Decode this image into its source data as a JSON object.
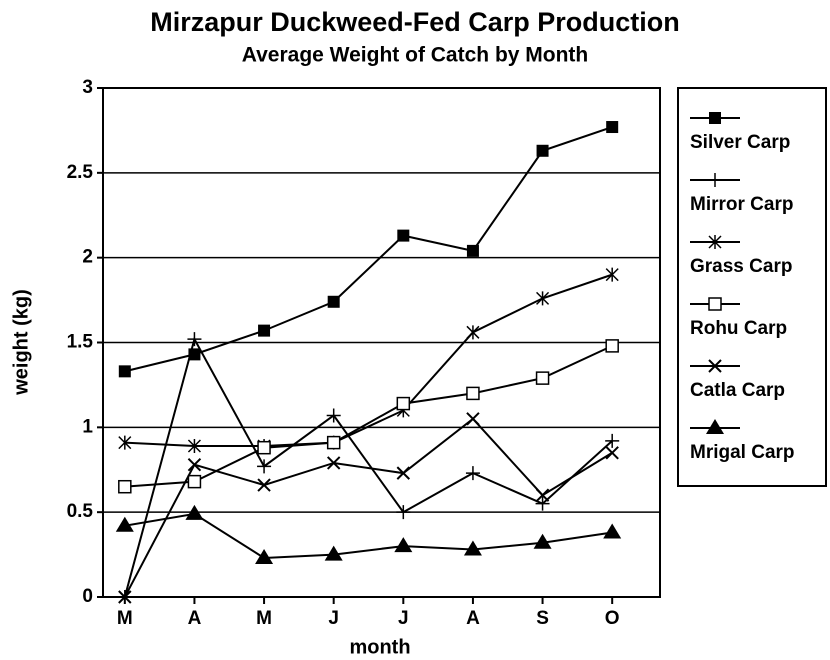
{
  "chart_data": {
    "type": "line",
    "title": "Mirzapur Duckweed-Fed Carp Production",
    "subtitle": "Average Weight of Catch by Month",
    "x_label": "month",
    "y_label": "weight (kg)",
    "categories": [
      "M",
      "A",
      "M",
      "J",
      "J",
      "A",
      "S",
      "O"
    ],
    "ylim": [
      0,
      3
    ],
    "yticks": [
      0,
      0.5,
      1,
      1.5,
      2,
      2.5,
      3
    ],
    "grid": true,
    "legend": "right",
    "series": [
      {
        "name": "Silver Carp",
        "color": "#000000",
        "marker": "filled-square",
        "values": [
          1.33,
          1.43,
          1.57,
          1.74,
          2.13,
          2.04,
          2.63,
          2.77
        ]
      },
      {
        "name": "Mirror Carp",
        "color": "#000000",
        "marker": "plus",
        "values": [
          0,
          1.52,
          0.77,
          1.07,
          0.5,
          0.73,
          0.55,
          0.92
        ]
      },
      {
        "name": "Grass Carp",
        "color": "#000000",
        "marker": "asterisk",
        "values": [
          0.91,
          0.89,
          0.89,
          0.91,
          1.1,
          1.56,
          1.76,
          1.9
        ]
      },
      {
        "name": "Rohu Carp",
        "color": "#000000",
        "marker": "open-square",
        "values": [
          0.65,
          0.68,
          0.88,
          0.91,
          1.14,
          1.2,
          1.29,
          1.48
        ]
      },
      {
        "name": "Catla Carp",
        "color": "#000000",
        "marker": "cross",
        "values": [
          0,
          0.78,
          0.66,
          0.79,
          0.73,
          1.05,
          0.6,
          0.85
        ]
      },
      {
        "name": "Mrigal Carp",
        "color": "#000000",
        "marker": "filled-triangle",
        "values": [
          0.42,
          0.49,
          0.23,
          0.25,
          0.3,
          0.28,
          0.32,
          0.38
        ]
      }
    ]
  }
}
